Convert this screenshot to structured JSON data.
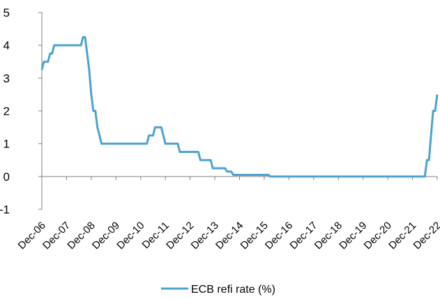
{
  "chart_data": {
    "type": "line",
    "title": "",
    "xlabel": "",
    "ylabel": "",
    "ylim": [
      -1,
      5
    ],
    "yticks": [
      "5",
      "4",
      "3",
      "2",
      "1",
      "0",
      "-1"
    ],
    "xticks": [
      "Dec-06",
      "Dec-07",
      "Dec-08",
      "Dec-09",
      "Dec-10",
      "Dec-11",
      "Dec-12",
      "Dec-13",
      "Dec-14",
      "Dec-15",
      "Dec-16",
      "Dec-17",
      "Dec-18",
      "Dec-19",
      "Dec-20",
      "Dec-21",
      "Dec-22"
    ],
    "grid": false,
    "legend_position": "bottom",
    "series": [
      {
        "name": "ECB refi rate (%)",
        "color": "#4BA3CF",
        "points": [
          [
            "Dec-06",
            3.25
          ],
          [
            "Jan-07",
            3.5
          ],
          [
            "Mar-07",
            3.5
          ],
          [
            "Apr-07",
            3.75
          ],
          [
            "May-07",
            3.75
          ],
          [
            "Jun-07",
            4.0
          ],
          [
            "Jul-08",
            4.0
          ],
          [
            "Aug-08",
            4.25
          ],
          [
            "Sep-08",
            4.25
          ],
          [
            "Oct-08",
            3.75
          ],
          [
            "Nov-08",
            3.25
          ],
          [
            "Dec-08",
            2.5
          ],
          [
            "Jan-09",
            2.0
          ],
          [
            "Feb-09",
            2.0
          ],
          [
            "Mar-09",
            1.5
          ],
          [
            "Apr-09",
            1.25
          ],
          [
            "May-09",
            1.0
          ],
          [
            "Mar-11",
            1.0
          ],
          [
            "Apr-11",
            1.25
          ],
          [
            "Jun-11",
            1.25
          ],
          [
            "Jul-11",
            1.5
          ],
          [
            "Oct-11",
            1.5
          ],
          [
            "Nov-11",
            1.25
          ],
          [
            "Dec-11",
            1.0
          ],
          [
            "Jun-12",
            1.0
          ],
          [
            "Jul-12",
            0.75
          ],
          [
            "Apr-13",
            0.75
          ],
          [
            "May-13",
            0.5
          ],
          [
            "Oct-13",
            0.5
          ],
          [
            "Nov-13",
            0.25
          ],
          [
            "May-14",
            0.25
          ],
          [
            "Jun-14",
            0.15
          ],
          [
            "Aug-14",
            0.15
          ],
          [
            "Sep-14",
            0.05
          ],
          [
            "Feb-16",
            0.05
          ],
          [
            "Mar-16",
            0.0
          ],
          [
            "Jun-22",
            0.0
          ],
          [
            "Jul-22",
            0.5
          ],
          [
            "Aug-22",
            0.5
          ],
          [
            "Sep-22",
            1.25
          ],
          [
            "Oct-22",
            2.0
          ],
          [
            "Nov-22",
            2.0
          ],
          [
            "Dec-22",
            2.5
          ]
        ]
      }
    ]
  }
}
